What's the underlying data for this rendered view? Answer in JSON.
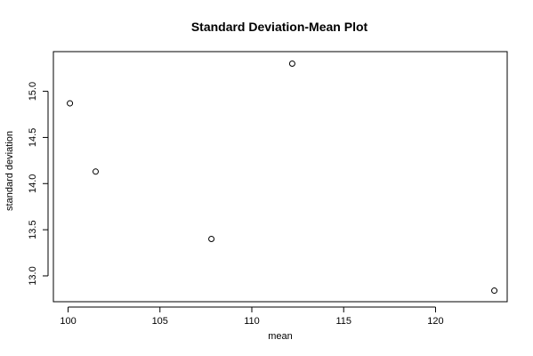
{
  "chart_data": {
    "type": "scatter",
    "title": "Standard Deviation-Mean Plot",
    "xlabel": "mean",
    "ylabel": "standard deviation",
    "xlim": [
      99.2,
      123.9
    ],
    "ylim": [
      12.72,
      15.43
    ],
    "x_ticks": [
      100,
      105,
      110,
      115,
      120
    ],
    "x_tick_labels": [
      "100",
      "105",
      "110",
      "115",
      "120"
    ],
    "y_ticks": [
      13.0,
      13.5,
      14.0,
      14.5,
      15.0
    ],
    "y_tick_labels": [
      "13.0",
      "13.5",
      "14.0",
      "14.5",
      "15.0"
    ],
    "points": [
      {
        "x": 100.1,
        "y": 14.87
      },
      {
        "x": 101.5,
        "y": 14.13
      },
      {
        "x": 107.8,
        "y": 13.4
      },
      {
        "x": 112.2,
        "y": 15.3
      },
      {
        "x": 123.2,
        "y": 12.84
      }
    ],
    "marker": "open-circle",
    "grid": false,
    "legend": "none",
    "colors": {
      "marker": "#000000",
      "axis": "#000000",
      "background": "#ffffff"
    }
  }
}
